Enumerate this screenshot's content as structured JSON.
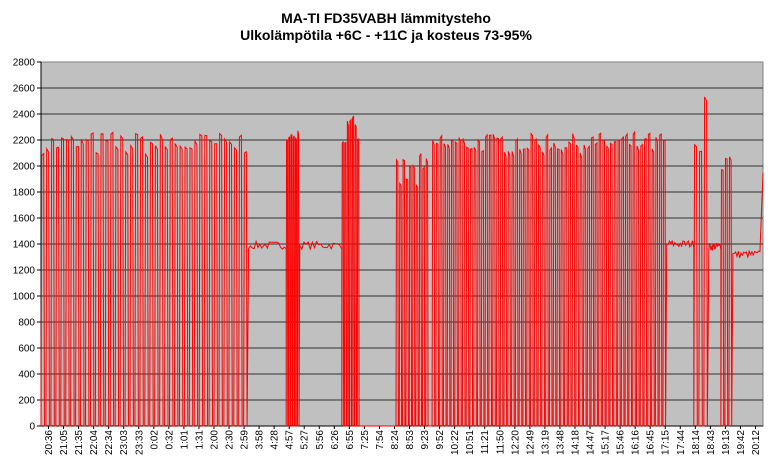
{
  "chart_data": {
    "type": "line",
    "title": "MA-TI FD35VABH lämmitysteho",
    "subtitle": "Ulkolämpötila  +6C - +11C ja kosteus 73-95%",
    "xlabel": "",
    "ylabel": "",
    "ylim": [
      0,
      2800
    ],
    "yticks": [
      "0",
      "200",
      "400",
      "600",
      "800",
      "1000",
      "1200",
      "1400",
      "1600",
      "1800",
      "2000",
      "2200",
      "2400",
      "2600",
      "2800"
    ],
    "x_tick_labels": [
      "20:36",
      "21:05",
      "21:35",
      "22:04",
      "22:34",
      "23:03",
      "23:33",
      "0:02",
      "0:32",
      "1:01",
      "1:31",
      "2:00",
      "2:30",
      "2:59",
      "3:58",
      "4:28",
      "4:57",
      "5:27",
      "5:56",
      "6:26",
      "6:55",
      "7:25",
      "7:54",
      "8:24",
      "8:53",
      "9:23",
      "9:52",
      "10:22",
      "10:51",
      "11:21",
      "11:50",
      "12:20",
      "12:49",
      "13:19",
      "13:48",
      "14:18",
      "14:47",
      "15:17",
      "15:46",
      "16:16",
      "16:45",
      "17:15",
      "17:44",
      "18:14",
      "18:43",
      "19:13",
      "19:42",
      "20:12"
    ],
    "series_color": "#ff0000",
    "plot_background": "#c0c0c0",
    "grid": true,
    "legend": "none",
    "segments": [
      {
        "type": "cycle",
        "x_from": 0.0,
        "x_to": 6.9,
        "n": 42,
        "high": [
          2080,
          2260
        ],
        "low": 0
      },
      {
        "type": "flat",
        "x_from": 6.9,
        "x_to": 8.15,
        "level": 1390
      },
      {
        "type": "cycle",
        "x_from": 8.15,
        "x_to": 8.6,
        "n": 6,
        "high": [
          2200,
          2280
        ],
        "low": 0
      },
      {
        "type": "flat",
        "x_from": 8.6,
        "x_to": 10.0,
        "level": 1390
      },
      {
        "type": "cycle",
        "x_from": 10.0,
        "x_to": 10.6,
        "n": 7,
        "high": [
          2150,
          2370
        ],
        "low": 0
      },
      {
        "type": "gap",
        "x_from": 10.6,
        "x_to": 11.8,
        "level": 0
      },
      {
        "type": "cycle",
        "x_from": 11.8,
        "x_to": 12.9,
        "n": 10,
        "high": [
          1800,
          2080
        ],
        "low": 0
      },
      {
        "type": "cycle",
        "x_from": 13.0,
        "x_to": 20.8,
        "n": 62,
        "high": [
          2100,
          2250
        ],
        "low": 0
      },
      {
        "type": "flat",
        "x_from": 20.8,
        "x_to": 21.7,
        "level": 1400
      },
      {
        "type": "cycle",
        "x_from": 21.7,
        "x_to": 22.2,
        "n": 3,
        "high": [
          2100,
          2580
        ],
        "low": 0
      },
      {
        "type": "flat",
        "x_from": 22.2,
        "x_to": 22.6,
        "level": 1380
      },
      {
        "type": "cycle",
        "x_from": 22.6,
        "x_to": 23.0,
        "n": 3,
        "high": [
          1950,
          2430
        ],
        "low": 0
      },
      {
        "type": "flat",
        "x_from": 23.0,
        "x_to": 23.9,
        "level": 1320
      },
      {
        "type": "end",
        "x_from": 23.9,
        "x_to": 24.0,
        "level": 1950
      }
    ]
  }
}
